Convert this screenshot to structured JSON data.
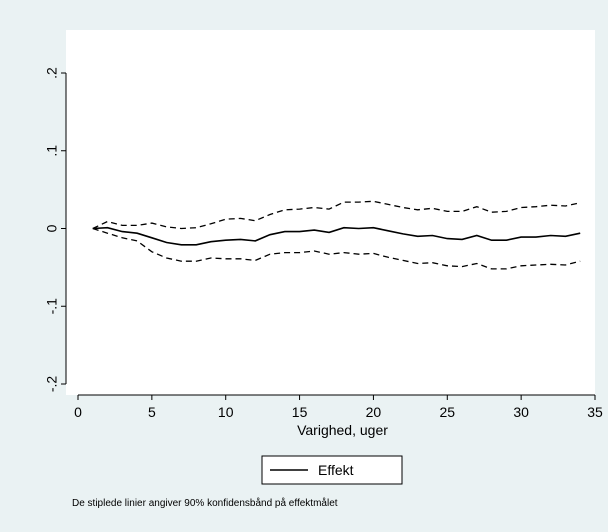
{
  "chart_data": {
    "type": "line",
    "xlabel": "Varighed, uger",
    "ylabel": "",
    "xlim": [
      0,
      35
    ],
    "ylim": [
      -0.2,
      0.2
    ],
    "x_ticks": [
      0,
      5,
      10,
      15,
      20,
      25,
      30,
      35
    ],
    "x_tick_labels": [
      "0",
      "5",
      "10",
      "15",
      "20",
      "25",
      "30",
      "35"
    ],
    "y_ticks": [
      0.2,
      0.1,
      0,
      -0.1,
      -0.2
    ],
    "y_tick_labels": [
      ".2",
      ".1",
      "0",
      "-.1",
      "-.2"
    ],
    "grid": false,
    "legend": {
      "position": "bottom-center",
      "entries": [
        "Effekt"
      ]
    },
    "note": "De stiplede linier angiver 90% konfidensbånd på effektmålet",
    "x": [
      1,
      2,
      3,
      4,
      5,
      6,
      7,
      8,
      9,
      10,
      11,
      12,
      13,
      14,
      15,
      16,
      17,
      18,
      19,
      20,
      21,
      22,
      23,
      24,
      25,
      26,
      27,
      28,
      29,
      30,
      31,
      32,
      33,
      34
    ],
    "series": [
      {
        "name": "Effekt",
        "style": "solid",
        "color": "#000000",
        "values": [
          0,
          0.001,
          -0.004,
          -0.006,
          -0.012,
          -0.018,
          -0.021,
          -0.021,
          -0.017,
          -0.015,
          -0.014,
          -0.016,
          -0.008,
          -0.004,
          -0.004,
          -0.002,
          -0.005,
          0.001,
          0.0,
          0.001,
          -0.003,
          -0.007,
          -0.01,
          -0.009,
          -0.013,
          -0.014,
          -0.009,
          -0.015,
          -0.015,
          -0.011,
          -0.011,
          -0.009,
          -0.01,
          -0.006
        ]
      },
      {
        "style": "dashed",
        "color": "#000000",
        "values": [
          0,
          0.009,
          0.004,
          0.004,
          0.007,
          0.002,
          0.0,
          0.001,
          0.006,
          0.012,
          0.013,
          0.01,
          0.018,
          0.024,
          0.025,
          0.027,
          0.025,
          0.034,
          0.034,
          0.035,
          0.031,
          0.027,
          0.024,
          0.026,
          0.022,
          0.022,
          0.028,
          0.021,
          0.022,
          0.027,
          0.028,
          0.03,
          0.029,
          0.033
        ]
      },
      {
        "style": "dashed",
        "color": "#000000",
        "values": [
          0,
          -0.006,
          -0.012,
          -0.016,
          -0.03,
          -0.038,
          -0.042,
          -0.042,
          -0.038,
          -0.039,
          -0.039,
          -0.041,
          -0.033,
          -0.031,
          -0.031,
          -0.029,
          -0.033,
          -0.031,
          -0.033,
          -0.032,
          -0.037,
          -0.041,
          -0.045,
          -0.044,
          -0.048,
          -0.049,
          -0.045,
          -0.052,
          -0.052,
          -0.048,
          -0.047,
          -0.046,
          -0.047,
          -0.042
        ]
      }
    ]
  },
  "colors": {
    "background": "#eaf2f3",
    "plot_area": "#ffffff",
    "line": "#000000"
  }
}
